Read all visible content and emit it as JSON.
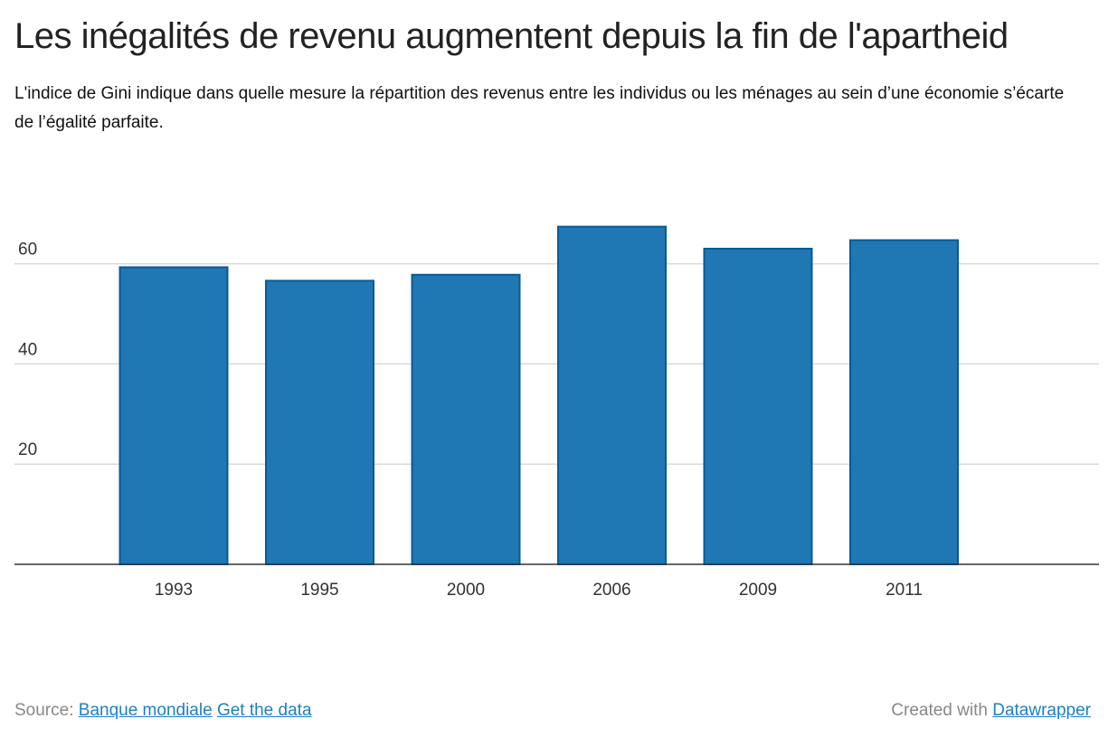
{
  "title": "Les inégalités de revenu augmentent depuis la fin de l'apartheid",
  "subtitle": "L'indice de Gini indique dans quelle mesure la répartition des revenus entre les individus ou les ménages au sein d’une économie s’écarte de l’égalité parfaite.",
  "footer": {
    "source_label": "Source:",
    "source_link": "Banque mondiale",
    "data_link": "Get the data",
    "created_label": "Created with",
    "created_link": "Datawrapper"
  },
  "chart_data": {
    "type": "bar",
    "categories": [
      "1993",
      "1995",
      "2000",
      "2006",
      "2009",
      "2011"
    ],
    "values": [
      59.3,
      56.6,
      57.8,
      67.4,
      63.0,
      64.7
    ],
    "yticks": [
      20,
      40,
      60
    ],
    "ylim": [
      0,
      70
    ],
    "grid": true,
    "colors": {
      "bar": "#1f77b4",
      "bar_border": "#0b5a94",
      "grid": "#d9d9d9",
      "axis": "#333333"
    }
  }
}
